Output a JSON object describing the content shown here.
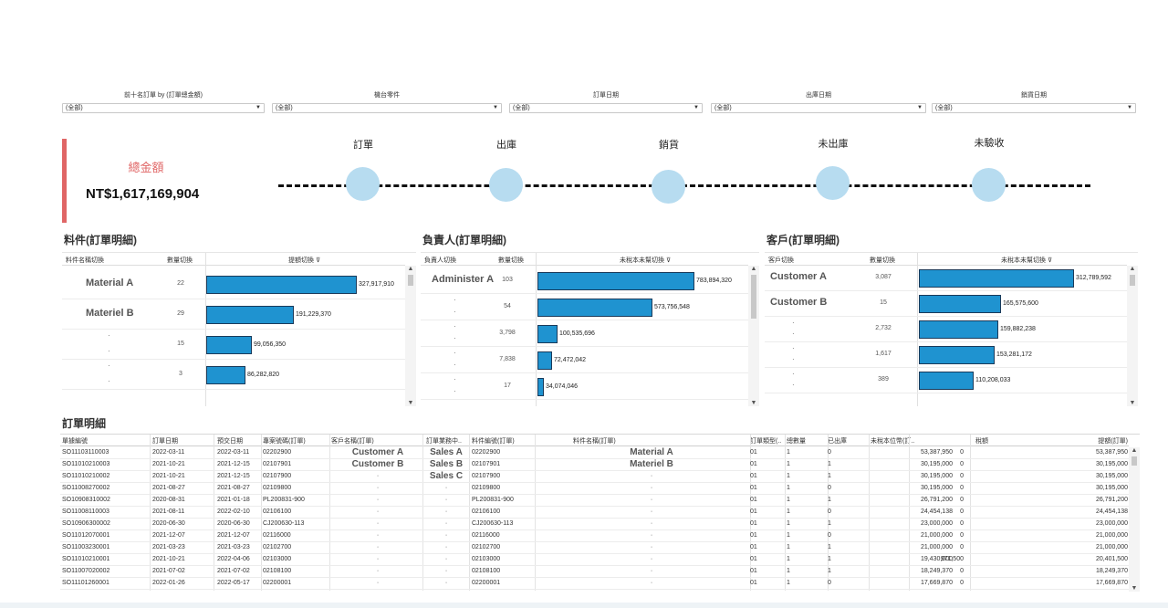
{
  "filters": [
    {
      "label": "前十名訂單 by (訂單總金額)",
      "value": "(全部)"
    },
    {
      "label": "機台零件",
      "value": "(全部)"
    },
    {
      "label": "訂單日期",
      "value": "(全部)"
    },
    {
      "label": "出庫日期",
      "value": "(全部)"
    },
    {
      "label": "銷貨日期",
      "value": "(全部)"
    }
  ],
  "kpi": {
    "label": "總金額",
    "value": "NT$1,617,169,904"
  },
  "stages": [
    "訂單",
    "出庫",
    "銷貨",
    "未出庫",
    "未驗收"
  ],
  "colors": {
    "accent": "#e06666",
    "bar": "#1f93d0",
    "circle": "#b7dcf0"
  },
  "panels": [
    {
      "title": "料件(訂單明細)",
      "headers": [
        "料件名稱切換",
        "數量切換",
        "提額切換 ⊽"
      ],
      "rows": [
        {
          "name": "Material A",
          "count": "22",
          "value": 327917910,
          "label": "327,917,910"
        },
        {
          "name": "Materiel B",
          "count": "29",
          "value": 191229370,
          "label": "191,229,370"
        },
        {
          "name": "",
          "count": "15",
          "value": 99056350,
          "label": "99,056,350"
        },
        {
          "name": "",
          "count": "3",
          "value": 86282820,
          "label": "86,282,820"
        }
      ]
    },
    {
      "title": "負責人(訂單明細)",
      "headers": [
        "負責人切換",
        "數量切換",
        "未稅本未幫切換 ⊽"
      ],
      "rows": [
        {
          "name": "Administer A",
          "count": "103",
          "value": 783894320,
          "label": "783,894,320"
        },
        {
          "name": "",
          "count": "54",
          "value": 573756548,
          "label": "573,756,548"
        },
        {
          "name": "",
          "count": "3,798",
          "value": 100535696,
          "label": "100,535,696"
        },
        {
          "name": "",
          "count": "7,838",
          "value": 72472042,
          "label": "72,472,042"
        },
        {
          "name": "",
          "count": "17",
          "value": 34074046,
          "label": "34,074,046"
        }
      ]
    },
    {
      "title": "客戶(訂單明細)",
      "headers": [
        "客戶切換",
        "數量切換",
        "未稅本未幫切換 ⊽"
      ],
      "rows": [
        {
          "name": "Customer A",
          "count": "3,087",
          "value": 312789592,
          "label": "312,789,592"
        },
        {
          "name": "Customer B",
          "count": "15",
          "value": 165575600,
          "label": "165,575,600"
        },
        {
          "name": "",
          "count": "2,732",
          "value": 159882238,
          "label": "159,882,238"
        },
        {
          "name": "",
          "count": "1,617",
          "value": 153281172,
          "label": "153,281,172"
        },
        {
          "name": "",
          "count": "389",
          "value": 110208033,
          "label": "110,208,033"
        }
      ]
    }
  ],
  "detail": {
    "title": "訂單明細",
    "headers": [
      "單據編號",
      "訂單日期",
      "預交日期",
      "專案號碼(訂單)",
      "客戶名稱(訂單)",
      "訂單業務中..",
      "料件編號(訂單)",
      "料件名稱(訂單)",
      "訂單類型(..",
      "總數量",
      "已出庫",
      "未稅本位幣(訂..",
      "稅額",
      "提額(訂單)"
    ],
    "rows": [
      [
        "SO11103110003",
        "2022-03-11",
        "2022-03-11",
        "02202900",
        "Customer A",
        "Sales A",
        "02202900",
        "Material A",
        "01",
        "1",
        "0",
        "53,387,950",
        "0",
        "53,387,950"
      ],
      [
        "SO11010210003",
        "2021-10-21",
        "2021-12-15",
        "02107901",
        "Customer B",
        "Sales B",
        "02107901",
        "Materiel B",
        "01",
        "1",
        "1",
        "30,195,000",
        "0",
        "30,195,000"
      ],
      [
        "SO11010210002",
        "2021-10-21",
        "2021-12-15",
        "02107900",
        "",
        "Sales C",
        "02107900",
        "",
        "01",
        "1",
        "1",
        "30,195,000",
        "0",
        "30,195,000"
      ],
      [
        "SO11008270002",
        "2021-08-27",
        "2021-08-27",
        "02109800",
        "",
        "",
        "02109800",
        "",
        "01",
        "1",
        "0",
        "30,195,000",
        "0",
        "30,195,000"
      ],
      [
        "SO10908310002",
        "2020-08-31",
        "2021-01-18",
        "PL200831-900",
        "",
        "",
        "PL200831-900",
        "",
        "01",
        "1",
        "1",
        "26,791,200",
        "0",
        "26,791,200"
      ],
      [
        "SO11008110003",
        "2021-08-11",
        "2022-02-10",
        "02106100",
        "",
        "",
        "02106100",
        "",
        "01",
        "1",
        "0",
        "24,454,138",
        "0",
        "24,454,138"
      ],
      [
        "SO10906300002",
        "2020-06-30",
        "2020-06-30",
        "CJ200630-113",
        "",
        "",
        "CJ200630-113",
        "",
        "01",
        "1",
        "1",
        "23,000,000",
        "0",
        "23,000,000"
      ],
      [
        "SO11012070001",
        "2021-12-07",
        "2021-12-07",
        "02116000",
        "",
        "",
        "02116000",
        "",
        "01",
        "1",
        "0",
        "21,000,000",
        "0",
        "21,000,000"
      ],
      [
        "SO11003230001",
        "2021-03-23",
        "2021-03-23",
        "02102700",
        "",
        "",
        "02102700",
        "",
        "01",
        "1",
        "1",
        "21,000,000",
        "0",
        "21,000,000"
      ],
      [
        "SO11010210001",
        "2021-10-21",
        "2022-04-06",
        "02103000",
        "",
        "",
        "02103000",
        "",
        "01",
        "1",
        "1",
        "19,430,000",
        "971,500",
        "20,401,500"
      ],
      [
        "SO11007020002",
        "2021-07-02",
        "2021-07-02",
        "02108100",
        "",
        "",
        "02108100",
        "",
        "01",
        "1",
        "1",
        "18,249,370",
        "0",
        "18,249,370"
      ],
      [
        "SO11101260001",
        "2022-01-26",
        "2022-05-17",
        "02200001",
        "",
        "",
        "02200001",
        "",
        "01",
        "1",
        "0",
        "17,669,870",
        "0",
        "17,669,870"
      ]
    ]
  }
}
